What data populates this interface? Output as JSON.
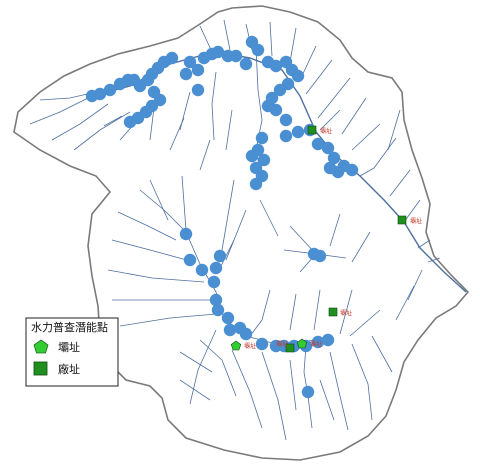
{
  "legend": {
    "title": "水力普查潛能點",
    "items": [
      {
        "label": "壩址",
        "symbol": "pentagon",
        "color": "#33cc33"
      },
      {
        "label": "廠址",
        "symbol": "square",
        "color": "#1f8f1f"
      }
    ]
  },
  "colors": {
    "boundary": "#7a7a7a",
    "river": "#4d6fa0",
    "potential_point": "#4b8fd3",
    "dam_site": "#33cc33",
    "plant_site": "#1f8f1f",
    "site_label": "#c0392b"
  },
  "site_labels": [
    "壩址",
    "壩址",
    "壩址",
    "壩址",
    "壩址",
    "壩址"
  ]
}
